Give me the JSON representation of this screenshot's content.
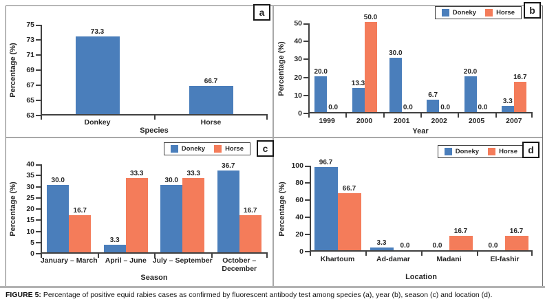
{
  "figure": {
    "caption_prefix": "FIGURE 5:",
    "caption_text": "Percentage of positive equid rabies cases as confirmed by fluorescent antibody test among species (a), year (b), season (c) and location (d)."
  },
  "colors": {
    "donkey": "#4a7ebb",
    "horse": "#f47c5a",
    "text": "#262626"
  },
  "legend": {
    "items": [
      {
        "label": "Doneky",
        "color_key": "donkey"
      },
      {
        "label": "Horse",
        "color_key": "horse"
      }
    ]
  },
  "chart_data": [
    {
      "id": "a",
      "panel_label": "a",
      "type": "bar",
      "xlabel": "Species",
      "ylabel": "Percentage (%)",
      "ylim": [
        63,
        75
      ],
      "ytick_step": 2,
      "grid": false,
      "legend": false,
      "categories": [
        "Donkey",
        "Horse"
      ],
      "series": [
        {
          "name": "",
          "color_key": "donkey",
          "values": [
            73.3,
            66.7
          ]
        }
      ]
    },
    {
      "id": "b",
      "panel_label": "b",
      "type": "bar",
      "xlabel": "Year",
      "ylabel": "Percentage (%)",
      "ylim": [
        0,
        50
      ],
      "ytick_step": 10,
      "grid": false,
      "legend": true,
      "legend_position": "top-right",
      "categories": [
        "1999",
        "2000",
        "2001",
        "2002",
        "2005",
        "2007"
      ],
      "series": [
        {
          "name": "Doneky",
          "color_key": "donkey",
          "values": [
            20.0,
            13.3,
            30.0,
            6.7,
            20.0,
            3.3
          ]
        },
        {
          "name": "Horse",
          "color_key": "horse",
          "values": [
            0.0,
            50.0,
            0.0,
            0.0,
            0.0,
            16.7
          ]
        }
      ]
    },
    {
      "id": "c",
      "panel_label": "c",
      "type": "bar",
      "xlabel": "Season",
      "ylabel": "Percentage (%)",
      "ylim": [
        0,
        40
      ],
      "ytick_step": 5,
      "grid": false,
      "legend": true,
      "legend_position": "top-right",
      "categories": [
        "January – March",
        "April – June",
        "July – September",
        "October –\nDecember"
      ],
      "series": [
        {
          "name": "Doneky",
          "color_key": "donkey",
          "values": [
            30.0,
            3.3,
            30.0,
            36.7
          ]
        },
        {
          "name": "Horse",
          "color_key": "horse",
          "values": [
            16.7,
            33.3,
            33.3,
            16.7
          ]
        }
      ]
    },
    {
      "id": "d",
      "panel_label": "d",
      "type": "bar",
      "xlabel": "Location",
      "ylabel": "Percentage (%)",
      "ylim": [
        0,
        100
      ],
      "ytick_step": 20,
      "grid": false,
      "legend": true,
      "legend_position": "top-right",
      "categories": [
        "Khartoum",
        "Ad-damar",
        "Madani",
        "El-fashir"
      ],
      "series": [
        {
          "name": "Doneky",
          "color_key": "donkey",
          "values": [
            96.7,
            3.3,
            0.0,
            0.0
          ]
        },
        {
          "name": "Horse",
          "color_key": "horse",
          "values": [
            66.7,
            0.0,
            16.7,
            16.7
          ]
        }
      ]
    }
  ]
}
